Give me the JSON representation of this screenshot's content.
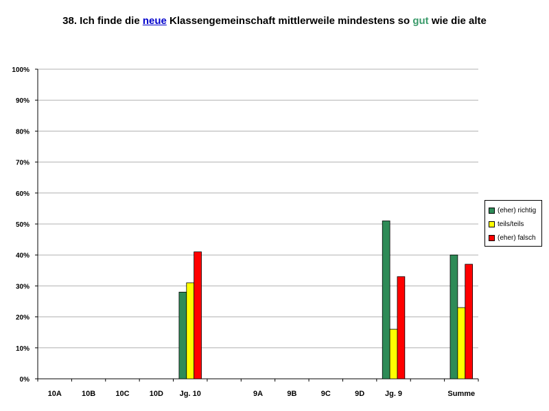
{
  "chart_data": {
    "type": "bar",
    "title_parts": [
      {
        "text": "38. Ich finde die ",
        "style": "plain"
      },
      {
        "text": "neue",
        "style": "blue"
      },
      {
        "text": " Klassengemeinschaft mittlerweile mindestens so ",
        "style": "plain"
      },
      {
        "text": "gut",
        "style": "green"
      },
      {
        "text": " wie die alte",
        "style": "plain"
      }
    ],
    "categories": [
      "10A",
      "10B",
      "10C",
      "10D",
      "Jg. 10",
      "",
      "9A",
      "9B",
      "9C",
      "9D",
      "Jg. 9",
      "",
      "Summe"
    ],
    "series": [
      {
        "name": "(eher) richtig",
        "color": "#2e8b57",
        "values": [
          null,
          null,
          null,
          null,
          28,
          null,
          null,
          null,
          null,
          null,
          51,
          null,
          40
        ]
      },
      {
        "name": "teils/teils",
        "color": "#ffff00",
        "values": [
          null,
          null,
          null,
          null,
          31,
          null,
          null,
          null,
          null,
          null,
          16,
          null,
          23
        ]
      },
      {
        "name": "(eher) falsch",
        "color": "#ff0000",
        "values": [
          null,
          null,
          null,
          null,
          41,
          null,
          null,
          null,
          null,
          null,
          33,
          null,
          37
        ]
      }
    ],
    "ylim": [
      0,
      100
    ],
    "yticks": [
      "0%",
      "10%",
      "20%",
      "30%",
      "40%",
      "50%",
      "60%",
      "70%",
      "80%",
      "90%",
      "100%"
    ],
    "grid": true,
    "legend_position": "right"
  }
}
